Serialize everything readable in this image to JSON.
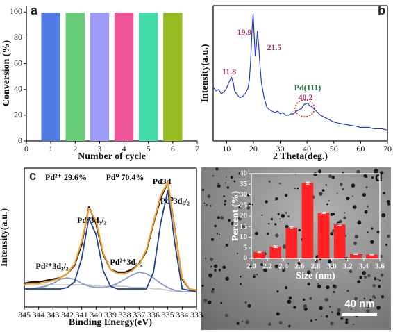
{
  "chart_data": [
    {
      "type": "bar",
      "panel_label": "a",
      "xlabel": "Number of cycle",
      "ylabel": "Conversion (%)",
      "x": [
        1,
        2,
        3,
        4,
        5,
        6
      ],
      "values": [
        99.6,
        99.4,
        99.5,
        99.6,
        99.5,
        99.4
      ],
      "colors": [
        "#4f7be3",
        "#66cc77",
        "#9b9bf5",
        "#ee5599",
        "#44ddaa",
        "#99bb22"
      ],
      "xlim": [
        0,
        7
      ],
      "xticks": [
        0,
        1,
        2,
        3,
        4,
        5,
        6,
        7
      ],
      "ylim": [
        0,
        105
      ],
      "yticks": [
        0,
        20,
        40,
        60,
        80,
        100
      ]
    },
    {
      "type": "line",
      "panel_label": "b",
      "xlabel": "2 Theta(deg.)",
      "ylabel": "Intensity(a.u.)",
      "annotations": [
        "11.8",
        "19.9",
        "21.5",
        "Pd(111)",
        "40.2"
      ],
      "x": [
        5,
        6,
        7,
        8,
        9,
        10,
        11,
        11.8,
        12.5,
        13,
        14,
        15,
        16,
        17,
        18,
        18.5,
        19,
        19.5,
        19.9,
        20.3,
        20.7,
        21,
        21.5,
        22,
        22.5,
        23,
        24,
        25,
        26,
        27,
        28,
        29,
        30,
        31,
        32,
        33,
        34,
        35,
        36,
        37,
        38,
        38.5,
        39,
        40.2,
        41,
        42,
        43,
        44,
        45,
        46,
        48,
        50,
        52,
        55,
        58,
        60,
        63,
        65,
        68,
        70
      ],
      "values": [
        40,
        37,
        38,
        35,
        36,
        39,
        44,
        47,
        43,
        37,
        34,
        32,
        33,
        35,
        39,
        45,
        60,
        82,
        94,
        78,
        63,
        68,
        81,
        70,
        55,
        43,
        32,
        25,
        23,
        22,
        21,
        22,
        20,
        21,
        19,
        19,
        20,
        20,
        22,
        23,
        24,
        26,
        27,
        28,
        26,
        25,
        23,
        21,
        19,
        18,
        16,
        14,
        13,
        12,
        11,
        10,
        10,
        9,
        9,
        8
      ],
      "color": "#2238cc",
      "xlim": [
        5,
        70
      ],
      "xticks": [
        10,
        20,
        30,
        40,
        50,
        60,
        70
      ],
      "ylim": [
        0,
        100
      ]
    },
    {
      "type": "line",
      "panel_label": "c",
      "xlabel": "Binding Energy(eV)",
      "ylabel": "Intensity(a.u.)",
      "annotations": [
        "Pd²⁺ 29.6%",
        "Pd⁰ 70.4%",
        "Pd3d",
        "Pd⁰3d₃/₂",
        "Pd⁰3d₅/₂",
        "Pd²⁺3d₃/₂",
        "Pd²⁺3d₅/₂"
      ],
      "x": [
        345,
        344.5,
        344,
        343.5,
        343,
        342.5,
        342,
        341.5,
        341,
        340.5,
        340,
        339.5,
        339,
        338.5,
        338,
        337.5,
        337,
        336.5,
        336,
        335.5,
        335,
        334.5,
        334,
        333.5,
        333
      ],
      "series": [
        {
          "color": "#cccccc",
          "values": [
            16,
            16,
            16,
            16,
            16,
            16,
            16,
            16,
            16,
            16,
            15,
            15,
            15,
            15,
            15,
            14,
            14,
            14,
            13,
            13,
            12,
            11,
            11,
            11,
            11
          ]
        },
        {
          "color": "#8899cc",
          "values": [
            13,
            13,
            14,
            15,
            17,
            20,
            21,
            20,
            17,
            15,
            14,
            14,
            15,
            17,
            20,
            23,
            25,
            24,
            21,
            17,
            14,
            12,
            11,
            11,
            11
          ]
        },
        {
          "color": "#1f3f8f",
          "values": [
            13,
            13,
            13,
            13,
            13,
            13,
            14,
            18,
            35,
            64,
            52,
            26,
            15,
            13,
            13,
            13,
            13,
            13,
            25,
            60,
            84,
            45,
            13,
            12,
            11
          ]
        },
        {
          "color": "#111111",
          "values": [
            17,
            18,
            18,
            19,
            20,
            21,
            24,
            30,
            45,
            72,
            60,
            38,
            27,
            25,
            25,
            27,
            31,
            40,
            60,
            78,
            90,
            55,
            20,
            13,
            12
          ]
        },
        {
          "color": "#f0a030",
          "values": [
            16,
            17,
            17,
            18,
            19,
            21,
            24,
            31,
            47,
            71,
            62,
            39,
            27,
            24,
            24,
            26,
            31,
            41,
            61,
            80,
            90,
            54,
            21,
            13,
            12
          ]
        }
      ],
      "xlim": [
        345,
        333
      ],
      "xticks": [
        345,
        344,
        343,
        342,
        341,
        340,
        339,
        338,
        337,
        336,
        335,
        334,
        333
      ],
      "ylim": [
        0,
        100
      ]
    },
    {
      "type": "histogram",
      "panel_label": "d",
      "scale_bar": "40 nm",
      "xlabel": "Size (nm)",
      "ylabel": "Percent (%)",
      "bins": [
        2.0,
        2.2,
        2.4,
        2.6,
        2.8,
        3.0,
        3.2,
        3.4,
        3.6
      ],
      "values": [
        3,
        5.5,
        14.5,
        35.5,
        21.5,
        16,
        2,
        1.8
      ],
      "errors": [
        0.3,
        0.4,
        0.5,
        0.5,
        0.4,
        0.4,
        0.2,
        0.2
      ],
      "color": "#ff2222",
      "xlim": [
        2.0,
        3.6
      ],
      "xticks": [
        {
          "value": 2,
          "label": "2.0"
        },
        2.2,
        2.4,
        2.6,
        2.8,
        {
          "value": 3,
          "label": "3.0"
        },
        3.2,
        3.4,
        3.6
      ],
      "ylim": [
        0,
        40
      ],
      "yticks": [
        0,
        5,
        10,
        15,
        20,
        25,
        30,
        35,
        40
      ]
    }
  ]
}
